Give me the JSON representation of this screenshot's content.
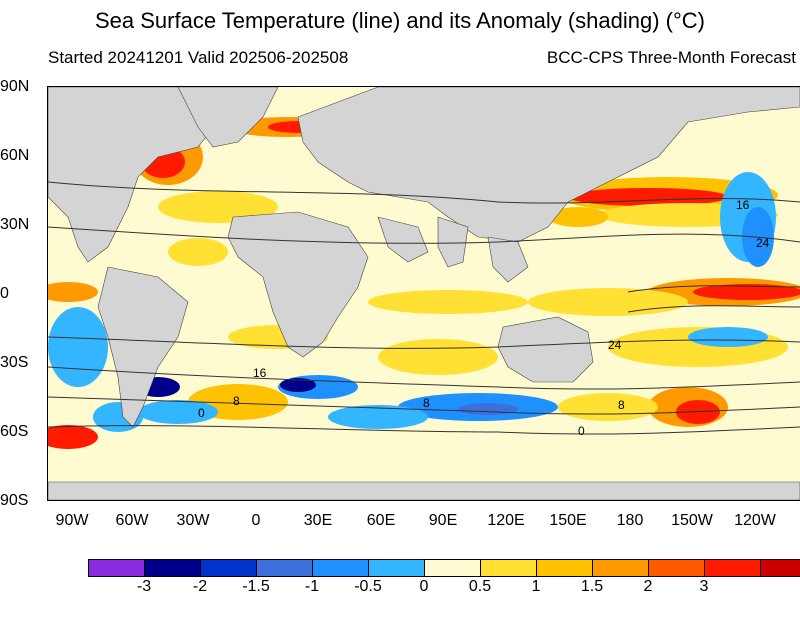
{
  "title": "Sea Surface Temperature (line) and its Anomaly (shading) (°C)",
  "subtitle_left": "Started 20241201  Valid 202506-202508",
  "subtitle_right": "BCC-CPS Three-Month Forecast",
  "lat_labels": [
    "90N",
    "60N",
    "30N",
    "0",
    "30S",
    "60S",
    "90S"
  ],
  "lon_labels": [
    "90W",
    "60W",
    "30W",
    "0",
    "30E",
    "60E",
    "90E",
    "120E",
    "150E",
    "180",
    "150W",
    "120W"
  ],
  "contour_labels": [
    "16",
    "24",
    "24",
    "16",
    "8",
    "0",
    "8",
    "8",
    "0"
  ],
  "colorbar": {
    "colors": [
      "#8a2be2",
      "#00008b",
      "#0033cc",
      "#3d6fdc",
      "#1e90ff",
      "#33b5ff",
      "#fffbd0",
      "#ffe033",
      "#ffc200",
      "#ff9900",
      "#ff5a00",
      "#ff1a00",
      "#cc0000"
    ],
    "labels": [
      "-3",
      "-2",
      "-1.5",
      "-1",
      "-0.5",
      "0",
      "0.5",
      "1",
      "1.5",
      "2",
      "3"
    ]
  },
  "colors": {
    "land": "#d4d4d4",
    "ocean_neutral": "#fffbd0",
    "contour": "#333333"
  }
}
